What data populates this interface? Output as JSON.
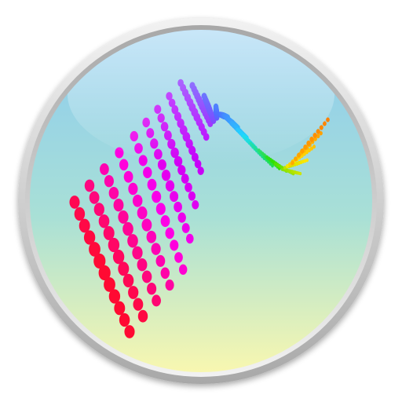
{
  "icon": {
    "semantic": "app-icon-3d-surface-plot",
    "colors": {
      "bezel_light": "#f2f2f2",
      "bezel_mid": "#cfcfcf",
      "bezel_dark": "#a8a8a8",
      "sky_top": "#8ccbf0",
      "sky_mid": "#a9e0d6",
      "sky_bottom": "#f8f7b0",
      "dot_red": "#ff0a32",
      "dot_magenta": "#ff00e6",
      "dot_violet": "#b000ff",
      "dot_blue": "#1f4dff",
      "dot_cyan": "#00d8ff",
      "dot_green": "#30e000",
      "dot_yellow": "#ffe600",
      "dot_orange": "#ff6a00"
    }
  }
}
